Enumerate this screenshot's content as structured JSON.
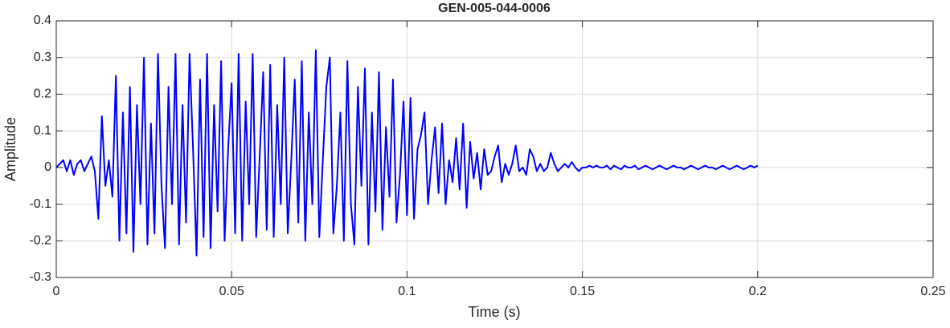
{
  "chart_data": {
    "type": "line",
    "title": "GEN-005-044-0006",
    "x_label": "Time (s)",
    "y_label": "Amplitude",
    "x": [
      0,
      0.001,
      0.002,
      0.003,
      0.004,
      0.005,
      0.006,
      0.007,
      0.008,
      0.009,
      0.01,
      0.011,
      0.012,
      0.013,
      0.014,
      0.015,
      0.016,
      0.017,
      0.018,
      0.019,
      0.02,
      0.021,
      0.022,
      0.023,
      0.024,
      0.025,
      0.026,
      0.027,
      0.028,
      0.029,
      0.03,
      0.031,
      0.032,
      0.033,
      0.034,
      0.035,
      0.036,
      0.037,
      0.038,
      0.039,
      0.04,
      0.041,
      0.042,
      0.043,
      0.044,
      0.045,
      0.046,
      0.047,
      0.048,
      0.049,
      0.05,
      0.051,
      0.052,
      0.053,
      0.054,
      0.055,
      0.056,
      0.057,
      0.058,
      0.059,
      0.06,
      0.061,
      0.062,
      0.063,
      0.064,
      0.065,
      0.066,
      0.067,
      0.068,
      0.069,
      0.07,
      0.071,
      0.072,
      0.073,
      0.074,
      0.075,
      0.076,
      0.077,
      0.078,
      0.079,
      0.08,
      0.081,
      0.082,
      0.083,
      0.084,
      0.085,
      0.086,
      0.087,
      0.088,
      0.089,
      0.09,
      0.091,
      0.092,
      0.093,
      0.094,
      0.095,
      0.096,
      0.097,
      0.098,
      0.099,
      0.1,
      0.101,
      0.102,
      0.103,
      0.104,
      0.105,
      0.106,
      0.107,
      0.108,
      0.109,
      0.11,
      0.111,
      0.112,
      0.113,
      0.114,
      0.115,
      0.116,
      0.117,
      0.118,
      0.119,
      0.12,
      0.121,
      0.122,
      0.123,
      0.124,
      0.125,
      0.126,
      0.127,
      0.128,
      0.129,
      0.13,
      0.131,
      0.132,
      0.133,
      0.134,
      0.135,
      0.136,
      0.137,
      0.138,
      0.139,
      0.14,
      0.141,
      0.142,
      0.143,
      0.144,
      0.145,
      0.146,
      0.147,
      0.148,
      0.149,
      0.15,
      0.151,
      0.152,
      0.153,
      0.154,
      0.155,
      0.156,
      0.157,
      0.158,
      0.159,
      0.16,
      0.161,
      0.162,
      0.163,
      0.164,
      0.165,
      0.166,
      0.167,
      0.168,
      0.169,
      0.17,
      0.171,
      0.172,
      0.173,
      0.174,
      0.175,
      0.176,
      0.177,
      0.178,
      0.179,
      0.18,
      0.181,
      0.182,
      0.183,
      0.184,
      0.185,
      0.186,
      0.187,
      0.188,
      0.189,
      0.19,
      0.191,
      0.192,
      0.193,
      0.194,
      0.195,
      0.196,
      0.197,
      0.198,
      0.199,
      0.2
    ],
    "values": [
      0,
      0.01,
      0.02,
      -0.01,
      0.02,
      -0.02,
      0.01,
      0.02,
      -0.01,
      0.01,
      0.03,
      -0.01,
      -0.14,
      0.14,
      -0.05,
      0.02,
      -0.08,
      0.25,
      -0.2,
      0.15,
      -0.18,
      0.22,
      -0.23,
      0.17,
      -0.1,
      0.3,
      -0.21,
      0.12,
      -0.18,
      0.31,
      -0.05,
      -0.22,
      0.22,
      -0.1,
      0.31,
      -0.21,
      0.17,
      -0.15,
      0.31,
      0.05,
      -0.24,
      0.24,
      -0.19,
      0.31,
      -0.22,
      0.17,
      -0.12,
      0.29,
      -0.2,
      0.05,
      0.23,
      -0.18,
      0.31,
      -0.2,
      0.18,
      -0.1,
      0.31,
      -0.19,
      0.03,
      0.26,
      -0.17,
      0.28,
      -0.19,
      0.17,
      -0.1,
      0.3,
      -0.18,
      0.02,
      0.24,
      -0.15,
      0.29,
      -0.2,
      0.15,
      -0.1,
      0.32,
      -0.19,
      0.02,
      0.22,
      0.3,
      -0.18,
      -0.05,
      0.15,
      -0.2,
      0.29,
      -0.1,
      -0.21,
      0.22,
      -0.05,
      0.27,
      -0.21,
      0.15,
      -0.12,
      0.26,
      -0.17,
      0.11,
      -0.08,
      0.24,
      -0.15,
      -0.02,
      0.18,
      -0.13,
      0.19,
      -0.14,
      0.05,
      0.09,
      0.15,
      -0.1,
      0.02,
      0.11,
      -0.07,
      0.12,
      -0.1,
      0.02,
      -0.04,
      0.08,
      -0.06,
      0.12,
      -0.11,
      0.07,
      -0.03,
      0.04,
      -0.06,
      0.05,
      -0.02,
      -0.01,
      0.03,
      0.06,
      -0.04,
      0.01,
      -0.02,
      0.01,
      0.06,
      -0.01,
      0,
      -0.02,
      0.05,
      0.03,
      -0.01,
      0.01,
      -0.01,
      0,
      0.04,
      0.01,
      -0.01,
      0,
      0.01,
      0,
      0.015,
      0,
      -0.01,
      0,
      0,
      0.005,
      0,
      0.005,
      0,
      0,
      0.005,
      -0.005,
      0.005,
      0,
      -0.005,
      0.005,
      0,
      0,
      0.005,
      -0.005,
      0,
      0.005,
      0,
      -0.005,
      0,
      0.005,
      0,
      -0.005,
      0,
      0.005,
      0,
      0,
      -0.005,
      0,
      0.005,
      0,
      -0.005,
      0,
      0.005,
      0,
      0,
      -0.005,
      0,
      0.005,
      0,
      -0.005,
      0,
      0.005,
      0,
      -0.005,
      0,
      0.005,
      0,
      0.005
    ],
    "color": "#0000ff",
    "xlim": [
      0,
      0.25
    ],
    "xticks": [
      0,
      0.05,
      0.1,
      0.15,
      0.2,
      0.25
    ],
    "ylim": [
      -0.3,
      0.4
    ],
    "yticks": [
      -0.3,
      -0.2,
      -0.1,
      0,
      0.1,
      0.2,
      0.3,
      0.4
    ],
    "grid": true
  }
}
